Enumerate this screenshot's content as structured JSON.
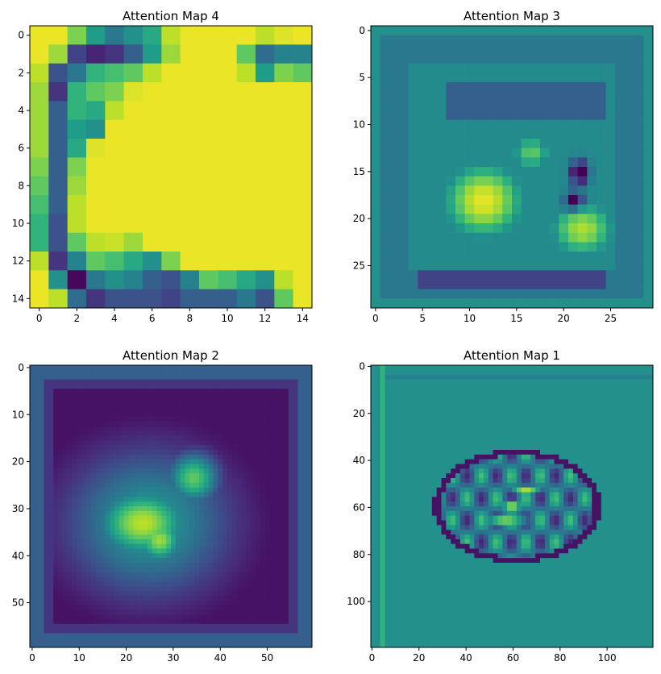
{
  "chart_data": [
    {
      "type": "heatmap",
      "title": "Attention Map 4",
      "grid_size": 15,
      "xticks": [
        0,
        2,
        4,
        6,
        8,
        10,
        12,
        14
      ],
      "yticks": [
        0,
        2,
        4,
        6,
        8,
        10,
        12,
        14
      ],
      "colormap": "viridis",
      "grid": false,
      "values": [
        [
          0.97,
          0.97,
          0.8,
          0.55,
          0.4,
          0.5,
          0.6,
          0.9,
          0.97,
          0.97,
          0.97,
          0.97,
          0.9,
          0.95,
          0.97
        ],
        [
          0.97,
          0.85,
          0.2,
          0.1,
          0.15,
          0.3,
          0.55,
          0.85,
          0.97,
          0.97,
          0.97,
          0.75,
          0.35,
          0.45,
          0.45
        ],
        [
          0.9,
          0.25,
          0.4,
          0.65,
          0.7,
          0.75,
          0.9,
          0.97,
          0.97,
          0.97,
          0.97,
          0.9,
          0.55,
          0.8,
          0.75
        ],
        [
          0.85,
          0.15,
          0.65,
          0.75,
          0.8,
          0.95,
          0.97,
          0.97,
          0.97,
          0.97,
          0.97,
          0.97,
          0.97,
          0.97,
          0.97
        ],
        [
          0.85,
          0.3,
          0.65,
          0.6,
          0.9,
          0.97,
          0.97,
          0.97,
          0.97,
          0.97,
          0.97,
          0.97,
          0.97,
          0.97,
          0.97
        ],
        [
          0.85,
          0.3,
          0.55,
          0.5,
          0.97,
          0.97,
          0.97,
          0.97,
          0.97,
          0.97,
          0.97,
          0.97,
          0.97,
          0.97,
          0.97
        ],
        [
          0.85,
          0.3,
          0.6,
          0.95,
          0.97,
          0.97,
          0.97,
          0.97,
          0.97,
          0.97,
          0.97,
          0.97,
          0.97,
          0.97,
          0.97
        ],
        [
          0.8,
          0.3,
          0.8,
          0.97,
          0.97,
          0.97,
          0.97,
          0.97,
          0.97,
          0.97,
          0.97,
          0.97,
          0.97,
          0.97,
          0.97
        ],
        [
          0.75,
          0.3,
          0.85,
          0.97,
          0.97,
          0.97,
          0.97,
          0.97,
          0.97,
          0.97,
          0.97,
          0.97,
          0.97,
          0.97,
          0.97
        ],
        [
          0.7,
          0.3,
          0.9,
          0.97,
          0.97,
          0.97,
          0.97,
          0.97,
          0.97,
          0.97,
          0.97,
          0.97,
          0.97,
          0.97,
          0.97
        ],
        [
          0.65,
          0.25,
          0.9,
          0.97,
          0.97,
          0.97,
          0.97,
          0.97,
          0.97,
          0.97,
          0.97,
          0.97,
          0.97,
          0.97,
          0.97
        ],
        [
          0.65,
          0.25,
          0.75,
          0.9,
          0.92,
          0.85,
          0.97,
          0.97,
          0.97,
          0.97,
          0.97,
          0.97,
          0.97,
          0.97,
          0.97
        ],
        [
          0.9,
          0.15,
          0.45,
          0.75,
          0.7,
          0.6,
          0.5,
          0.8,
          0.97,
          0.97,
          0.97,
          0.97,
          0.97,
          0.97,
          0.97
        ],
        [
          0.97,
          0.5,
          0.02,
          0.4,
          0.5,
          0.45,
          0.3,
          0.25,
          0.45,
          0.75,
          0.7,
          0.6,
          0.5,
          0.9,
          0.97
        ],
        [
          0.97,
          0.9,
          0.35,
          0.15,
          0.25,
          0.25,
          0.25,
          0.2,
          0.3,
          0.3,
          0.3,
          0.4,
          0.25,
          0.75,
          0.97
        ]
      ]
    },
    {
      "type": "heatmap",
      "title": "Attention Map 3",
      "grid_size": 30,
      "xticks": [
        0,
        5,
        10,
        15,
        20,
        25
      ],
      "yticks": [
        0,
        5,
        10,
        15,
        20,
        25
      ],
      "colormap": "viridis",
      "grid": false
    },
    {
      "type": "heatmap",
      "title": "Attention Map 2",
      "grid_size": 60,
      "xticks": [
        0,
        10,
        20,
        30,
        40,
        50
      ],
      "yticks": [
        0,
        10,
        20,
        30,
        40,
        50
      ],
      "colormap": "viridis",
      "grid": false
    },
    {
      "type": "heatmap",
      "title": "Attention Map 1",
      "grid_size": 120,
      "xticks": [
        0,
        20,
        40,
        60,
        80,
        100
      ],
      "yticks": [
        0,
        20,
        40,
        60,
        80,
        100
      ],
      "colormap": "viridis",
      "grid": false
    }
  ]
}
